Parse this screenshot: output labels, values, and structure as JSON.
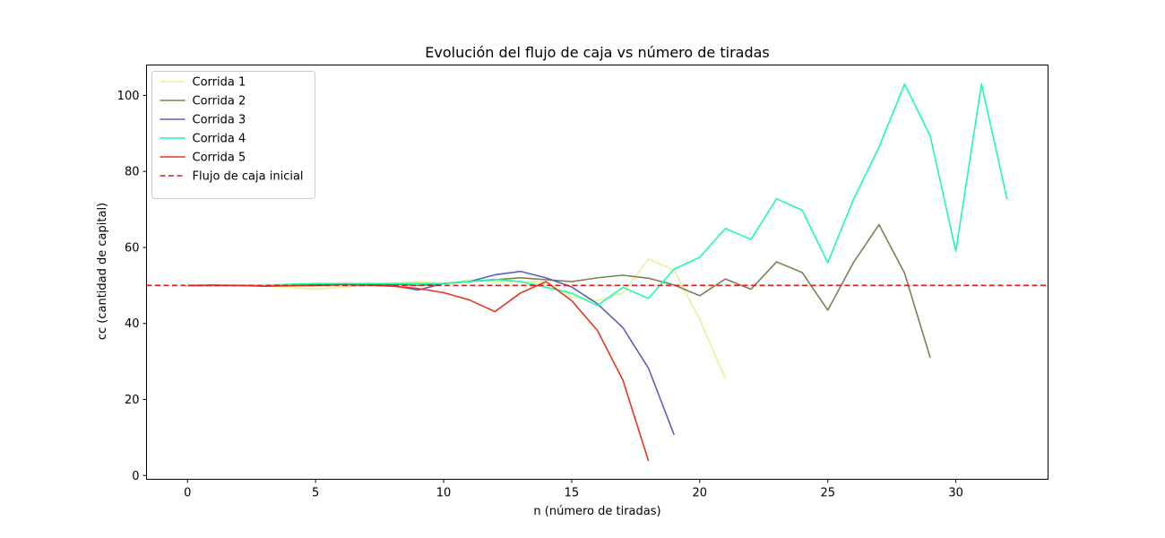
{
  "chart_data": {
    "type": "line",
    "title": "Evolución del flujo de caja vs número de tiradas",
    "xlabel": "n (número de tiradas)",
    "ylabel": "cc (cantidad de capital)",
    "xlim": [
      -1.6,
      33.6
    ],
    "ylim": [
      -1,
      108
    ],
    "xticks": [
      0,
      5,
      10,
      15,
      20,
      25,
      30
    ],
    "yticks": [
      0,
      20,
      40,
      60,
      80,
      100
    ],
    "grid": false,
    "legend_position": "top-left",
    "series": [
      {
        "name": "Corrida 1",
        "color": "#e3f59b",
        "style": "solid",
        "x": [
          0,
          1,
          2,
          3,
          4,
          5,
          6,
          7,
          8,
          9,
          10,
          11,
          12,
          13,
          14,
          15,
          16,
          17,
          18,
          19,
          20,
          21
        ],
        "y": [
          50,
          50,
          50,
          49.8,
          49.5,
          49,
          49.5,
          50,
          50.5,
          51,
          50.5,
          51.5,
          51,
          51,
          51,
          47,
          46,
          48,
          57,
          54,
          41,
          25.5
        ]
      },
      {
        "name": "Corrida 2",
        "color": "#7f7f55",
        "style": "solid",
        "x": [
          0,
          1,
          2,
          3,
          4,
          5,
          6,
          7,
          8,
          9,
          10,
          11,
          12,
          13,
          14,
          15,
          16,
          17,
          18,
          19,
          20,
          21,
          22,
          23,
          24,
          25,
          26,
          27,
          28,
          29
        ],
        "y": [
          50,
          50,
          50,
          50,
          50,
          50,
          50.2,
          50.5,
          50.3,
          50,
          50.5,
          51,
          51.5,
          52,
          51.5,
          51,
          52,
          52.7,
          51.9,
          50.1,
          47.3,
          51.7,
          49,
          56.2,
          53.4,
          43.5,
          56,
          66,
          53.2,
          31
        ]
      },
      {
        "name": "Corrida 3",
        "color": "#5b5fbe",
        "style": "solid",
        "x": [
          0,
          1,
          2,
          3,
          4,
          5,
          6,
          7,
          8,
          9,
          10,
          11,
          12,
          13,
          14,
          15,
          16,
          17,
          18,
          19
        ],
        "y": [
          50,
          50,
          50,
          50,
          50,
          50.2,
          50.2,
          50.2,
          50,
          48.8,
          50.5,
          51,
          52.8,
          53.7,
          52,
          49.6,
          45.2,
          38.9,
          28.2,
          10.7
        ]
      },
      {
        "name": "Corrida 4",
        "color": "#1dfba7",
        "style": "solid",
        "x": [
          0,
          1,
          2,
          3,
          4,
          5,
          6,
          7,
          8,
          9,
          10,
          11,
          12,
          13,
          14,
          15,
          16,
          17,
          18,
          19,
          20,
          21,
          22,
          23,
          24,
          25,
          26,
          27,
          28,
          29,
          30,
          31,
          32
        ],
        "y": [
          50,
          50,
          50,
          50,
          50.3,
          50.5,
          50.5,
          50.5,
          50.5,
          50.5,
          50.5,
          51,
          51.6,
          51,
          49.5,
          48,
          44.7,
          49.5,
          46.6,
          54.3,
          57.4,
          65,
          62.1,
          72.8,
          69.8,
          56,
          72.6,
          86.4,
          103,
          89.3,
          59,
          103,
          72.7
        ]
      },
      {
        "name": "Corrida 5",
        "color": "#e5371f",
        "style": "solid",
        "x": [
          0,
          1,
          2,
          3,
          4,
          5,
          6,
          7,
          8,
          9,
          10,
          11,
          12,
          13,
          14,
          15,
          16,
          17,
          18
        ],
        "y": [
          50,
          50.1,
          50,
          49.8,
          49.9,
          50,
          50.2,
          50.1,
          49.8,
          49.2,
          48.1,
          46.2,
          43.1,
          48,
          51,
          46,
          38.2,
          25.1,
          3.8
        ]
      },
      {
        "name": "Flujo de caja inicial",
        "color": "#e31a1c",
        "style": "dashed",
        "y_constant": 50
      }
    ]
  }
}
